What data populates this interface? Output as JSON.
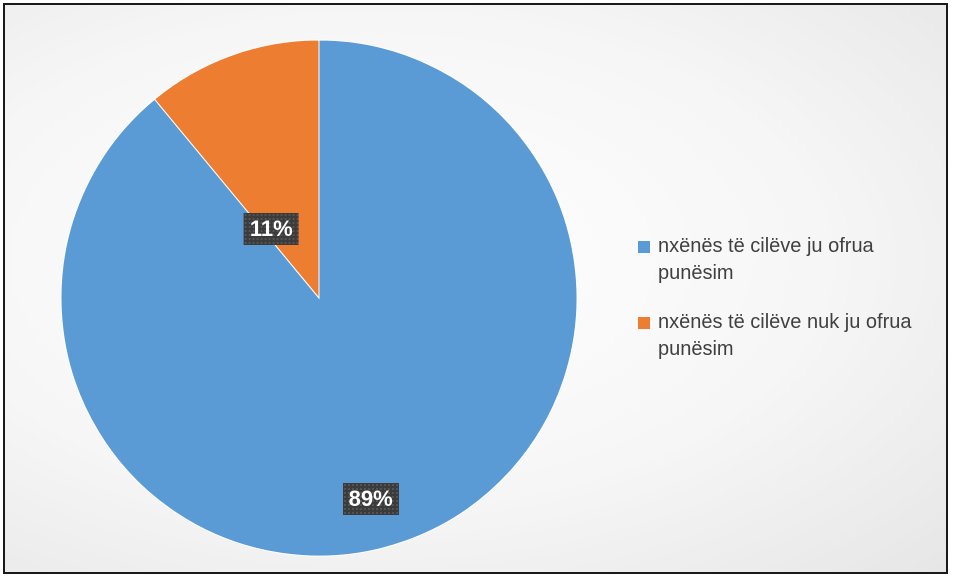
{
  "chart_data": {
    "type": "pie",
    "title": "",
    "slices": [
      {
        "label": "nxënës të cilëve ju ofrua punësim",
        "value": 89,
        "data_label": "89%",
        "color": "#5b9bd5"
      },
      {
        "label": "nxënës të cilëve nuk ju ofrua punësim",
        "value": 11,
        "data_label": "11%",
        "color": "#ed7d31"
      }
    ],
    "legend_position": "right",
    "start_angle_deg": 0,
    "direction": "clockwise"
  }
}
